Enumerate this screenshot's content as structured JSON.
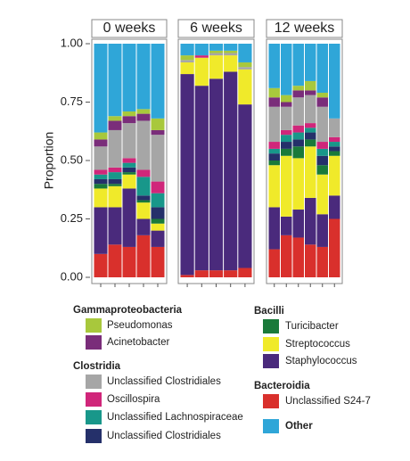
{
  "chart_data": {
    "type": "bar",
    "stacked": true,
    "y_label": "Proportion",
    "ylim": [
      0,
      1
    ],
    "yticks": [
      {
        "value": 0,
        "label": "0.00"
      },
      {
        "value": 0.25,
        "label": "0.25"
      },
      {
        "value": 0.5,
        "label": "0.50"
      },
      {
        "value": 0.75,
        "label": "0.75"
      },
      {
        "value": 1,
        "label": "1.00"
      }
    ],
    "facets": [
      {
        "title": "0 weeks",
        "categories": [
          null,
          null,
          null,
          null,
          null
        ]
      },
      {
        "title": "6 weeks",
        "categories": [
          null,
          null,
          null,
          null,
          null
        ]
      },
      {
        "title": "12 weeks",
        "categories": [
          null,
          null,
          null,
          null,
          null,
          null
        ]
      }
    ],
    "series": [
      {
        "name": "Unclassified S24-7",
        "group": "Bacteroidia",
        "color": "#d9302c",
        "values": [
          [
            0.1,
            0.14,
            0.13,
            0.18,
            0.13
          ],
          [
            0.01,
            0.03,
            0.03,
            0.03,
            0.04
          ],
          [
            0.12,
            0.18,
            0.17,
            0.14,
            0.13,
            0.25
          ]
        ]
      },
      {
        "name": "Staphylococcus",
        "group": "Bacilli",
        "color": "#4a2a7c",
        "values": [
          [
            0.2,
            0.16,
            0.25,
            0.07,
            0.07
          ],
          [
            0.86,
            0.79,
            0.82,
            0.85,
            0.7
          ],
          [
            0.18,
            0.08,
            0.12,
            0.2,
            0.14,
            0.1
          ]
        ]
      },
      {
        "name": "Streptococcus",
        "group": "Bacilli",
        "color": "#f0ea2a",
        "values": [
          [
            0.08,
            0.09,
            0.06,
            0.07,
            0.03
          ],
          [
            0.05,
            0.12,
            0.1,
            0.07,
            0.15
          ],
          [
            0.18,
            0.26,
            0.22,
            0.22,
            0.17,
            0.17
          ]
        ]
      },
      {
        "name": "Turicibacter",
        "group": "Bacilli",
        "color": "#1a7a3a",
        "values": [
          [
            0.02,
            0.01,
            0.01,
            0.01,
            0.02
          ],
          [
            0,
            0,
            0,
            0,
            0
          ],
          [
            0.02,
            0.03,
            0.05,
            0.03,
            0.04,
            0.02
          ]
        ]
      },
      {
        "name": "Unclassified Clostridiales",
        "group": "Clostridia",
        "color": "#25306a",
        "values": [
          [
            0.02,
            0.02,
            0.02,
            0.02,
            0.05
          ],
          [
            0,
            0,
            0,
            0,
            0
          ],
          [
            0.03,
            0.03,
            0.03,
            0.03,
            0.04,
            0.02
          ]
        ]
      },
      {
        "name": "Unclassified Lachnospiraceae",
        "group": "Clostridia",
        "color": "#18978a",
        "values": [
          [
            0.02,
            0.03,
            0.02,
            0.08,
            0.06
          ],
          [
            0,
            0,
            0,
            0,
            0
          ],
          [
            0.02,
            0.03,
            0.03,
            0.02,
            0.03,
            0.02
          ]
        ]
      },
      {
        "name": "Oscillospira",
        "group": "Clostridia",
        "color": "#d0267a",
        "values": [
          [
            0.02,
            0.02,
            0.02,
            0.03,
            0.05
          ],
          [
            0,
            0.01,
            0,
            0,
            0
          ],
          [
            0.03,
            0.02,
            0.03,
            0.02,
            0.03,
            0.02
          ]
        ]
      },
      {
        "name": "Unclassified Clostridiales",
        "group": "Clostridia",
        "color": "#a6a6a6",
        "values": [
          [
            0.1,
            0.16,
            0.15,
            0.21,
            0.2
          ],
          [
            0.01,
            0,
            0.01,
            0.01,
            0.01
          ],
          [
            0.15,
            0.1,
            0.12,
            0.12,
            0.15,
            0.08
          ]
        ]
      },
      {
        "name": "Acinetobacter",
        "group": "Gammaproteobacteria",
        "color": "#7a2d7a",
        "values": [
          [
            0.03,
            0.04,
            0.03,
            0.03,
            0.02
          ],
          [
            0,
            0,
            0,
            0,
            0
          ],
          [
            0.04,
            0.02,
            0.03,
            0.02,
            0.04,
            0
          ]
        ]
      },
      {
        "name": "Pseudomonas",
        "group": "Gammaproteobacteria",
        "color": "#a8c83c",
        "values": [
          [
            0.03,
            0.02,
            0.02,
            0.02,
            0.05
          ],
          [
            0.02,
            0,
            0.01,
            0.01,
            0.02
          ],
          [
            0.04,
            0.03,
            0.02,
            0.04,
            0.02,
            0
          ]
        ]
      },
      {
        "name": "Other",
        "color": "#2fa6d8",
        "values": [
          [
            0.38,
            0.31,
            0.29,
            0.28,
            0.32
          ],
          [
            0.05,
            0.05,
            0.03,
            0.03,
            0.08
          ],
          [
            0.19,
            0.22,
            0.18,
            0.16,
            0.21,
            0.32
          ]
        ]
      }
    ]
  }
}
